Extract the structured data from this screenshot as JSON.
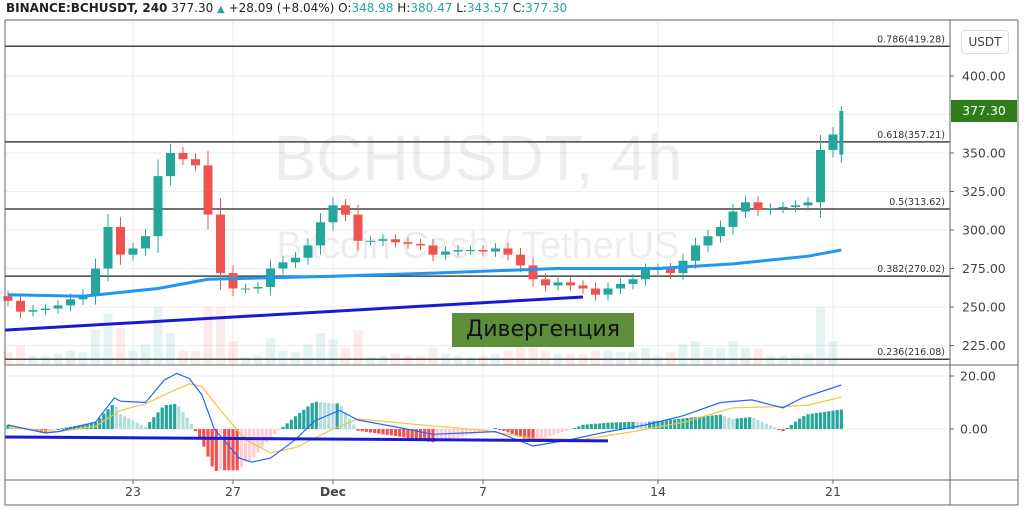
{
  "header": {
    "symbol": "BINANCE:BCHUSDT, 240",
    "price": "377.30",
    "change": "+28.09 (+8.04%)",
    "o_label": "O:",
    "o": "348.98",
    "h_label": "H:",
    "h": "380.47",
    "l_label": "L:",
    "l": "343.57",
    "c_label": "C:",
    "c": "377.30"
  },
  "watermark": {
    "title": "BCHUSDT, 4h",
    "subtitle": "Bitcoin Cash / TetherUS"
  },
  "currency_button": "USDT",
  "last_price_label": "377.30",
  "annotation": "Дивергенция",
  "colors": {
    "up": "#26a69a",
    "down": "#ef5350",
    "ma": "#2196f3",
    "trendline": "#1a1ad6",
    "macd": "#2962ff",
    "signal": "#f5c242",
    "last_price_bg": "#2e7d1a",
    "annotation_bg": "#5d8f3a"
  },
  "chart_data": [
    {
      "type": "candlestick",
      "price_axis": {
        "ticks": [
          "400.00",
          "350.00",
          "325.00",
          "300.00",
          "275.00",
          "250.00",
          "225.00"
        ],
        "range": [
          210,
          430
        ]
      },
      "time_axis": {
        "ticks": [
          {
            "label": "23",
            "t": "Nov 23 00:00"
          },
          {
            "label": "27",
            "t": "Nov 27 00:00"
          },
          {
            "label": "Dec",
            "t": "Dec 1 00:00"
          },
          {
            "label": "7",
            "t": "Dec 7 00:00"
          },
          {
            "label": "14",
            "t": "Dec 14 00:00"
          },
          {
            "label": "21",
            "t": "Dec 21 00:00"
          }
        ]
      },
      "times": [
        "Nov 18 00:00",
        "Nov 18 12:00",
        "Nov 19 00:00",
        "Nov 19 12:00",
        "Nov 20 00:00",
        "Nov 20 12:00",
        "Nov 21 00:00",
        "Nov 21 12:00",
        "Nov 22 00:00",
        "Nov 22 12:00",
        "Nov 23 00:00",
        "Nov 23 12:00",
        "Nov 24 00:00",
        "Nov 24 12:00",
        "Nov 25 00:00",
        "Nov 25 12:00",
        "Nov 26 00:00",
        "Nov 26 12:00",
        "Nov 27 00:00",
        "Nov 27 12:00",
        "Nov 28 00:00",
        "Nov 28 12:00",
        "Nov 29 00:00",
        "Nov 29 12:00",
        "Nov 30 00:00",
        "Nov 30 12:00",
        "Dec 1 00:00",
        "Dec 1 12:00",
        "Dec 2 00:00",
        "Dec 2 12:00",
        "Dec 3 00:00",
        "Dec 3 12:00",
        "Dec 4 00:00",
        "Dec 4 12:00",
        "Dec 5 00:00",
        "Dec 5 12:00",
        "Dec 6 00:00",
        "Dec 6 12:00",
        "Dec 7 00:00",
        "Dec 7 12:00",
        "Dec 8 00:00",
        "Dec 8 12:00",
        "Dec 9 00:00",
        "Dec 9 12:00",
        "Dec 10 00:00",
        "Dec 10 12:00",
        "Dec 11 00:00",
        "Dec 11 12:00",
        "Dec 12 00:00",
        "Dec 12 12:00",
        "Dec 13 00:00",
        "Dec 13 12:00",
        "Dec 14 00:00",
        "Dec 14 12:00",
        "Dec 15 00:00",
        "Dec 15 12:00",
        "Dec 16 00:00",
        "Dec 16 12:00",
        "Dec 17 00:00",
        "Dec 17 12:00",
        "Dec 18 00:00",
        "Dec 18 12:00",
        "Dec 19 00:00",
        "Dec 19 12:00",
        "Dec 20 00:00",
        "Dec 20 12:00",
        "Dec 21 00:00"
      ],
      "close": [
        254,
        247,
        248,
        249,
        251,
        255,
        258,
        275,
        302,
        284,
        288,
        296,
        335,
        350,
        346,
        342,
        310,
        272,
        262,
        262,
        263,
        275,
        279,
        282,
        290,
        305,
        316,
        310,
        293,
        293,
        294,
        292,
        291,
        290,
        284,
        286,
        287,
        287,
        286,
        288,
        284,
        277,
        268,
        264,
        266,
        264,
        262,
        258,
        262,
        265,
        268,
        274,
        275,
        272,
        280,
        290,
        296,
        302,
        312,
        318,
        313,
        314,
        315,
        316,
        318,
        352,
        362
      ],
      "last_candle": {
        "t": "Dec 21 08:00",
        "o": 348.98,
        "h": 380.47,
        "l": 343.57,
        "c": 377.3
      },
      "moving_average": [
        [
          "Nov 18 00:00",
          258
        ],
        [
          "Nov 21 00:00",
          257
        ],
        [
          "Nov 24 00:00",
          262
        ],
        [
          "Nov 26 00:00",
          268
        ],
        [
          "Dec 1 00:00",
          270
        ],
        [
          "Dec 5 00:00",
          272
        ],
        [
          "Dec 10 00:00",
          275
        ],
        [
          "Dec 14 00:00",
          275
        ],
        [
          "Dec 17 00:00",
          278
        ],
        [
          "Dec 20 00:00",
          283
        ],
        [
          "Dec 21 08:00",
          287
        ]
      ],
      "fib_levels": [
        {
          "label": "0.786(419.28)",
          "value": 419.28
        },
        {
          "label": "0.618(357.21)",
          "value": 357.21
        },
        {
          "label": "0.5(313.62)",
          "value": 313.62
        },
        {
          "label": "0.382(270.02)",
          "value": 270.02
        },
        {
          "label": "0.236(216.08)",
          "value": 216.08
        }
      ],
      "trendline": [
        [
          "Nov 17 21:00",
          235
        ],
        [
          "Dec 11 00:00",
          256.5
        ]
      ]
    },
    {
      "type": "line",
      "indicator": "MACD",
      "y_axis": {
        "ticks": [
          "20.00",
          "0.00"
        ],
        "range": [
          -19,
          40
        ]
      },
      "macd": [
        [
          "Nov 18 00:00",
          1.5
        ],
        [
          "Nov 19 12:00",
          -1.5
        ],
        [
          "Nov 20 00:00",
          -1
        ],
        [
          "Nov 21 12:00",
          2.6
        ],
        [
          "Nov 22 06:00",
          11.7
        ],
        [
          "Nov 22 12:00",
          10.5
        ],
        [
          "Nov 23 12:00",
          10
        ],
        [
          "Nov 24 06:00",
          18.5
        ],
        [
          "Nov 24 18:00",
          21
        ],
        [
          "Nov 25 06:00",
          19
        ],
        [
          "Nov 25 18:00",
          13
        ],
        [
          "Nov 26 06:00",
          0
        ],
        [
          "Nov 27 06:00",
          -11
        ],
        [
          "Nov 27 18:00",
          -12.5
        ],
        [
          "Nov 28 12:00",
          -11
        ],
        [
          "Nov 29 12:00",
          -4
        ],
        [
          "Nov 30 06:00",
          3
        ],
        [
          "Dec 1 06:00",
          7
        ],
        [
          "Dec 2 00:00",
          3.4
        ],
        [
          "Dec 3 12:00",
          0.8
        ],
        [
          "Dec 5 00:00",
          -2
        ],
        [
          "Dec 7 12:00",
          -1
        ],
        [
          "Dec 9 00:00",
          -6.4
        ],
        [
          "Dec 10 12:00",
          -4
        ],
        [
          "Dec 12 00:00",
          -1
        ],
        [
          "Dec 13 12:00",
          1.5
        ],
        [
          "Dec 15 00:00",
          5
        ],
        [
          "Dec 16 12:00",
          10
        ],
        [
          "Dec 17 18:00",
          11
        ],
        [
          "Dec 19 00:00",
          8
        ],
        [
          "Dec 19 18:00",
          11.7
        ],
        [
          "Dec 21 08:00",
          16.6
        ]
      ],
      "signal": [
        [
          "Nov 18 00:00",
          0.5
        ],
        [
          "Nov 20 00:00",
          -1
        ],
        [
          "Nov 21 12:00",
          1
        ],
        [
          "Nov 22 12:00",
          7
        ],
        [
          "Nov 23 12:00",
          9.5
        ],
        [
          "Nov 24 12:00",
          14
        ],
        [
          "Nov 25 06:00",
          17
        ],
        [
          "Nov 25 18:00",
          16
        ],
        [
          "Nov 26 12:00",
          7
        ],
        [
          "Nov 27 12:00",
          -4
        ],
        [
          "Nov 28 12:00",
          -9
        ],
        [
          "Nov 29 12:00",
          -7
        ],
        [
          "Dec 1 00:00",
          0
        ],
        [
          "Dec 2 00:00",
          3.8
        ],
        [
          "Dec 4 00:00",
          2
        ],
        [
          "Dec 7 00:00",
          -0.5
        ],
        [
          "Dec 9 00:00",
          -3.5
        ],
        [
          "Dec 11 00:00",
          -4
        ],
        [
          "Dec 13 00:00",
          -1
        ],
        [
          "Dec 15 00:00",
          2.5
        ],
        [
          "Dec 17 00:00",
          8
        ],
        [
          "Dec 19 00:00",
          8.5
        ],
        [
          "Dec 20 00:00",
          9
        ],
        [
          "Dec 21 08:00",
          12
        ]
      ],
      "trendline": [
        [
          "Nov 17 21:00",
          -3
        ],
        [
          "Dec 12 00:00",
          -4.5
        ]
      ]
    }
  ]
}
